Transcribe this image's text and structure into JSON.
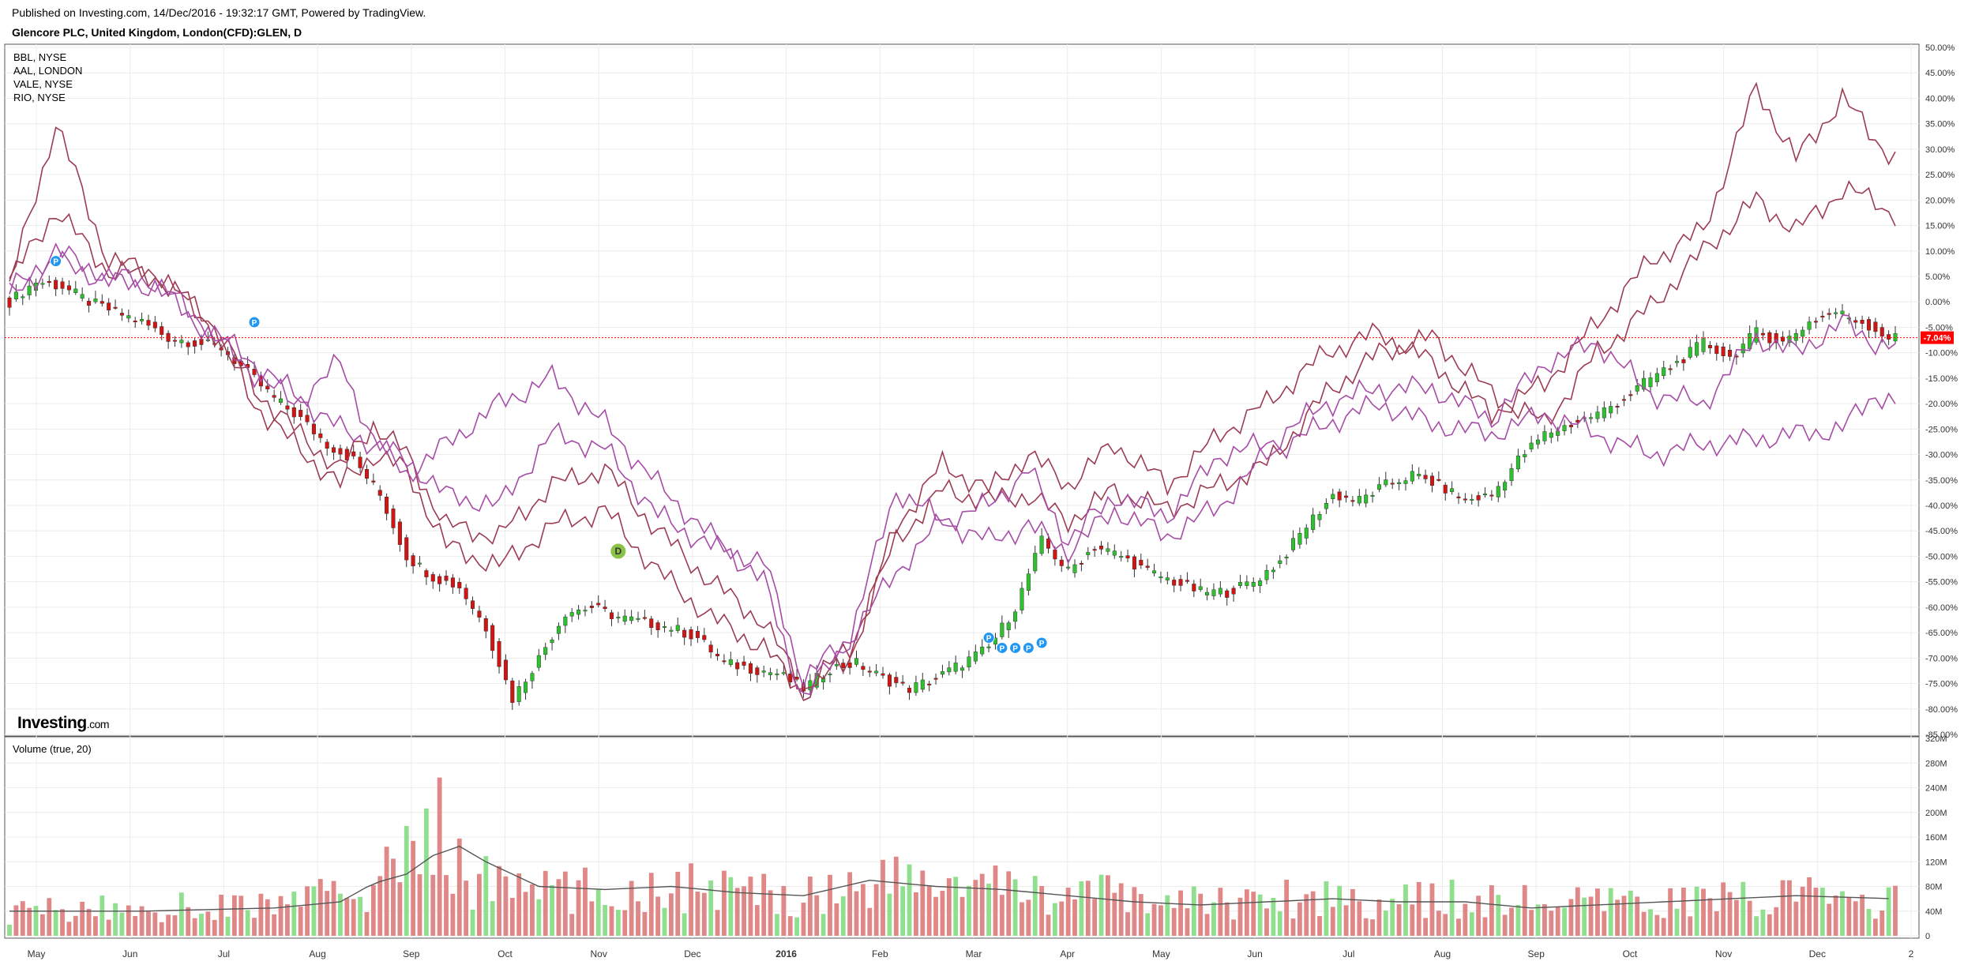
{
  "header": {
    "published": "Published on Investing.com, 14/Dec/2016 - 19:32:17 GMT, Powered by TradingView.",
    "symbol": "Glencore PLC, United Kingdom, London(CFD):GLEN, D"
  },
  "branding": {
    "logo_text": "Investing",
    "logo_suffix": ".com"
  },
  "main_panel": {
    "legend": [
      "BBL, NYSE",
      "AAL, LONDON",
      "VALE, NYSE",
      "RIO, NYSE"
    ],
    "price_badge": "-7.04%",
    "y_ticks": [
      "50.00%",
      "45.00%",
      "40.00%",
      "35.00%",
      "30.00%",
      "25.00%",
      "20.00%",
      "15.00%",
      "10.00%",
      "5.00%",
      "0.00%",
      "-5.00%",
      "-10.00%",
      "-15.00%",
      "-20.00%",
      "-25.00%",
      "-30.00%",
      "-35.00%",
      "-40.00%",
      "-45.00%",
      "-50.00%",
      "-55.00%",
      "-60.00%",
      "-65.00%",
      "-70.00%",
      "-75.00%",
      "-80.00%",
      "-85.00%"
    ]
  },
  "volume_panel": {
    "label": "Volume (true, 20)",
    "y_ticks": [
      "320M",
      "280M",
      "240M",
      "200M",
      "160M",
      "120M",
      "80M",
      "40M",
      "0"
    ]
  },
  "x_axis": {
    "ticks": [
      "May",
      "Jun",
      "Jul",
      "Aug",
      "Sep",
      "Oct",
      "Nov",
      "Dec",
      "2016",
      "Feb",
      "Mar",
      "Apr",
      "May",
      "Jun",
      "Jul",
      "Aug",
      "Sep",
      "Oct",
      "Nov",
      "Dec",
      "2"
    ]
  },
  "markers": [
    {
      "label": "P",
      "color": "#2196f3"
    },
    {
      "label": "P",
      "color": "#2196f3"
    },
    {
      "label": "D",
      "color": "#8bc34a"
    },
    {
      "label": "P",
      "color": "#2196f3"
    },
    {
      "label": "P",
      "color": "#2196f3"
    },
    {
      "label": "P",
      "color": "#2196f3"
    },
    {
      "label": "P",
      "color": "#2196f3"
    },
    {
      "label": "P",
      "color": "#2196f3"
    }
  ],
  "colors": {
    "up": "#2fc02f",
    "down": "#d01515",
    "vol_up": "#8fdf8f",
    "vol_down": "#e08787",
    "series_dark": "#9c3c52",
    "series_purple": "#a64ca6",
    "price_line": "#ff0000",
    "volume_ma": "#555555"
  },
  "chart_data": {
    "type": "candlestick_with_comparison_lines",
    "main_ylim": [
      -85,
      50
    ],
    "volume_ylim": [
      0,
      320
    ],
    "last_value": -7.04,
    "series": [
      {
        "name": "BBL, NYSE",
        "points": [
          [
            0,
            4
          ],
          [
            7,
            18
          ],
          [
            15,
            6
          ],
          [
            22,
            5
          ],
          [
            30,
            -3
          ],
          [
            37,
            -17
          ],
          [
            43,
            -25
          ],
          [
            50,
            -33
          ],
          [
            55,
            -24
          ],
          [
            60,
            -30
          ],
          [
            66,
            -44
          ],
          [
            74,
            -46
          ],
          [
            82,
            -36
          ],
          [
            90,
            -33
          ],
          [
            98,
            -45
          ],
          [
            106,
            -55
          ],
          [
            114,
            -63
          ],
          [
            120,
            -76
          ],
          [
            127,
            -68
          ],
          [
            134,
            -47
          ],
          [
            141,
            -37
          ],
          [
            148,
            -39
          ],
          [
            154,
            -38
          ],
          [
            160,
            -43
          ],
          [
            167,
            -37
          ],
          [
            175,
            -41
          ],
          [
            183,
            -36
          ],
          [
            190,
            -32
          ],
          [
            199,
            -18
          ],
          [
            207,
            -10
          ],
          [
            215,
            -7
          ],
          [
            224,
            -18
          ],
          [
            232,
            -24
          ],
          [
            240,
            -10
          ],
          [
            248,
            -1
          ],
          [
            256,
            10
          ],
          [
            264,
            20
          ],
          [
            270,
            14
          ],
          [
            277,
            22
          ],
          [
            282,
            20
          ],
          [
            285,
            17
          ]
        ]
      },
      {
        "name": "AAL, LONDON",
        "points": [
          [
            0,
            3
          ],
          [
            7,
            35
          ],
          [
            15,
            8
          ],
          [
            22,
            6
          ],
          [
            30,
            -4
          ],
          [
            37,
            -20
          ],
          [
            43,
            -28
          ],
          [
            50,
            -36
          ],
          [
            55,
            -30
          ],
          [
            60,
            -33
          ],
          [
            66,
            -48
          ],
          [
            74,
            -52
          ],
          [
            82,
            -44
          ],
          [
            90,
            -41
          ],
          [
            98,
            -53
          ],
          [
            106,
            -62
          ],
          [
            114,
            -68
          ],
          [
            120,
            -77
          ],
          [
            127,
            -70
          ],
          [
            134,
            -44
          ],
          [
            141,
            -32
          ],
          [
            148,
            -37
          ],
          [
            154,
            -30
          ],
          [
            160,
            -36
          ],
          [
            167,
            -28
          ],
          [
            175,
            -36
          ],
          [
            183,
            -26
          ],
          [
            190,
            -20
          ],
          [
            199,
            -10
          ],
          [
            207,
            -6
          ],
          [
            215,
            -12
          ],
          [
            224,
            -22
          ],
          [
            232,
            -16
          ],
          [
            240,
            -4
          ],
          [
            248,
            8
          ],
          [
            256,
            14
          ],
          [
            264,
            42
          ],
          [
            270,
            28
          ],
          [
            277,
            40
          ],
          [
            282,
            32
          ],
          [
            285,
            28
          ]
        ]
      },
      {
        "name": "VALE, NYSE",
        "points": [
          [
            0,
            2
          ],
          [
            7,
            10
          ],
          [
            15,
            5
          ],
          [
            22,
            4
          ],
          [
            30,
            -5
          ],
          [
            37,
            -12
          ],
          [
            43,
            -18
          ],
          [
            50,
            -25
          ],
          [
            55,
            -28
          ],
          [
            60,
            -31
          ],
          [
            66,
            -38
          ],
          [
            74,
            -40
          ],
          [
            82,
            -26
          ],
          [
            90,
            -29
          ],
          [
            98,
            -42
          ],
          [
            106,
            -48
          ],
          [
            114,
            -51
          ],
          [
            120,
            -74
          ],
          [
            127,
            -66
          ],
          [
            134,
            -53
          ],
          [
            141,
            -43
          ],
          [
            148,
            -47
          ],
          [
            154,
            -44
          ],
          [
            160,
            -49
          ],
          [
            167,
            -41
          ],
          [
            175,
            -46
          ],
          [
            183,
            -40
          ],
          [
            190,
            -30
          ],
          [
            199,
            -24
          ],
          [
            207,
            -20
          ],
          [
            215,
            -24
          ],
          [
            224,
            -26
          ],
          [
            232,
            -22
          ],
          [
            240,
            -26
          ],
          [
            248,
            -30
          ],
          [
            256,
            -28
          ],
          [
            264,
            -27
          ],
          [
            270,
            -26
          ],
          [
            277,
            -25
          ],
          [
            282,
            -18
          ],
          [
            285,
            -20
          ]
        ]
      },
      {
        "name": "RIO, NYSE",
        "points": [
          [
            0,
            1
          ],
          [
            7,
            8
          ],
          [
            15,
            4
          ],
          [
            22,
            3
          ],
          [
            30,
            -6
          ],
          [
            37,
            -14
          ],
          [
            43,
            -20
          ],
          [
            50,
            -12
          ],
          [
            55,
            -27
          ],
          [
            60,
            -34
          ],
          [
            66,
            -28
          ],
          [
            74,
            -20
          ],
          [
            82,
            -15
          ],
          [
            90,
            -24
          ],
          [
            98,
            -36
          ],
          [
            106,
            -46
          ],
          [
            114,
            -55
          ],
          [
            120,
            -78
          ],
          [
            127,
            -66
          ],
          [
            134,
            -37
          ],
          [
            141,
            -43
          ],
          [
            148,
            -40
          ],
          [
            154,
            -33
          ],
          [
            160,
            -47
          ],
          [
            167,
            -38
          ],
          [
            175,
            -42
          ],
          [
            183,
            -30
          ],
          [
            190,
            -28
          ],
          [
            199,
            -20
          ],
          [
            207,
            -17
          ],
          [
            215,
            -17
          ],
          [
            224,
            -23
          ],
          [
            232,
            -12
          ],
          [
            240,
            -8
          ],
          [
            248,
            -18
          ],
          [
            256,
            -20
          ],
          [
            264,
            -7
          ],
          [
            270,
            -10
          ],
          [
            277,
            -4
          ],
          [
            282,
            -8
          ],
          [
            285,
            -9
          ]
        ]
      }
    ],
    "price_path": [
      [
        0,
        0
      ],
      [
        4,
        4
      ],
      [
        8,
        3
      ],
      [
        12,
        0
      ],
      [
        16,
        -2
      ],
      [
        20,
        -4
      ],
      [
        24,
        -7
      ],
      [
        28,
        -8
      ],
      [
        32,
        -9
      ],
      [
        36,
        -14
      ],
      [
        40,
        -19
      ],
      [
        44,
        -23
      ],
      [
        48,
        -28
      ],
      [
        52,
        -31
      ],
      [
        56,
        -38
      ],
      [
        60,
        -50
      ],
      [
        64,
        -54
      ],
      [
        68,
        -56
      ],
      [
        72,
        -64
      ],
      [
        76,
        -78
      ],
      [
        80,
        -70
      ],
      [
        84,
        -61
      ],
      [
        88,
        -60
      ],
      [
        92,
        -62
      ],
      [
        96,
        -63
      ],
      [
        100,
        -64
      ],
      [
        104,
        -66
      ],
      [
        108,
        -71
      ],
      [
        112,
        -72
      ],
      [
        116,
        -73
      ],
      [
        120,
        -76
      ],
      [
        124,
        -72
      ],
      [
        128,
        -71
      ],
      [
        132,
        -74
      ],
      [
        136,
        -76
      ],
      [
        140,
        -74
      ],
      [
        144,
        -71
      ],
      [
        148,
        -68
      ],
      [
        152,
        -60
      ],
      [
        156,
        -47
      ],
      [
        160,
        -53
      ],
      [
        164,
        -48
      ],
      [
        168,
        -50
      ],
      [
        172,
        -53
      ],
      [
        176,
        -55
      ],
      [
        180,
        -57
      ],
      [
        184,
        -57
      ],
      [
        188,
        -55
      ],
      [
        192,
        -51
      ],
      [
        196,
        -44
      ],
      [
        200,
        -38
      ],
      [
        204,
        -39
      ],
      [
        208,
        -36
      ],
      [
        212,
        -34
      ],
      [
        216,
        -36
      ],
      [
        220,
        -39
      ],
      [
        224,
        -38
      ],
      [
        228,
        -31
      ],
      [
        232,
        -26
      ],
      [
        236,
        -24
      ],
      [
        240,
        -22
      ],
      [
        244,
        -19
      ],
      [
        248,
        -15
      ],
      [
        252,
        -12
      ],
      [
        256,
        -8
      ],
      [
        260,
        -11
      ],
      [
        264,
        -6
      ],
      [
        268,
        -8
      ],
      [
        272,
        -4
      ],
      [
        276,
        -2
      ],
      [
        280,
        -4
      ],
      [
        284,
        -7.04
      ]
    ],
    "volume_path": [
      [
        0,
        40
      ],
      [
        20,
        45
      ],
      [
        40,
        50
      ],
      [
        55,
        80
      ],
      [
        60,
        120
      ],
      [
        64,
        210
      ],
      [
        66,
        130
      ],
      [
        70,
        90
      ],
      [
        80,
        75
      ],
      [
        90,
        70
      ],
      [
        100,
        80
      ],
      [
        110,
        70
      ],
      [
        120,
        65
      ],
      [
        130,
        90
      ],
      [
        140,
        85
      ],
      [
        150,
        75
      ],
      [
        160,
        70
      ],
      [
        170,
        60
      ],
      [
        180,
        55
      ],
      [
        190,
        60
      ],
      [
        200,
        65
      ],
      [
        210,
        55
      ],
      [
        220,
        60
      ],
      [
        230,
        55
      ],
      [
        240,
        50
      ],
      [
        250,
        55
      ],
      [
        260,
        60
      ],
      [
        270,
        65
      ],
      [
        285,
        55
      ]
    ],
    "volume_ma_path": [
      [
        0,
        40
      ],
      [
        20,
        40
      ],
      [
        40,
        45
      ],
      [
        50,
        55
      ],
      [
        55,
        85
      ],
      [
        60,
        100
      ],
      [
        64,
        130
      ],
      [
        68,
        145
      ],
      [
        72,
        120
      ],
      [
        80,
        80
      ],
      [
        90,
        75
      ],
      [
        100,
        80
      ],
      [
        110,
        70
      ],
      [
        120,
        65
      ],
      [
        130,
        90
      ],
      [
        140,
        80
      ],
      [
        150,
        75
      ],
      [
        160,
        65
      ],
      [
        170,
        55
      ],
      [
        180,
        50
      ],
      [
        190,
        55
      ],
      [
        200,
        60
      ],
      [
        210,
        55
      ],
      [
        220,
        55
      ],
      [
        230,
        45
      ],
      [
        240,
        50
      ],
      [
        250,
        55
      ],
      [
        260,
        60
      ],
      [
        270,
        65
      ],
      [
        285,
        60
      ]
    ]
  }
}
